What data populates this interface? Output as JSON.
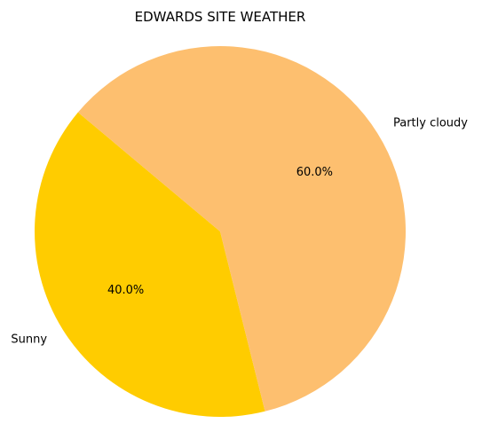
{
  "chart_data": {
    "type": "pie",
    "title": "EDWARDS SITE WEATHER",
    "slices": [
      {
        "label": "Sunny",
        "value": 40.0,
        "pct_label": "40.0%",
        "color": "#ffcc00"
      },
      {
        "label": "Partly cloudy",
        "value": 60.0,
        "pct_label": "60.0%",
        "color": "#fdbf6f"
      }
    ],
    "start_angle_deg": 140,
    "direction": "counterclockwise",
    "legend": "none"
  }
}
